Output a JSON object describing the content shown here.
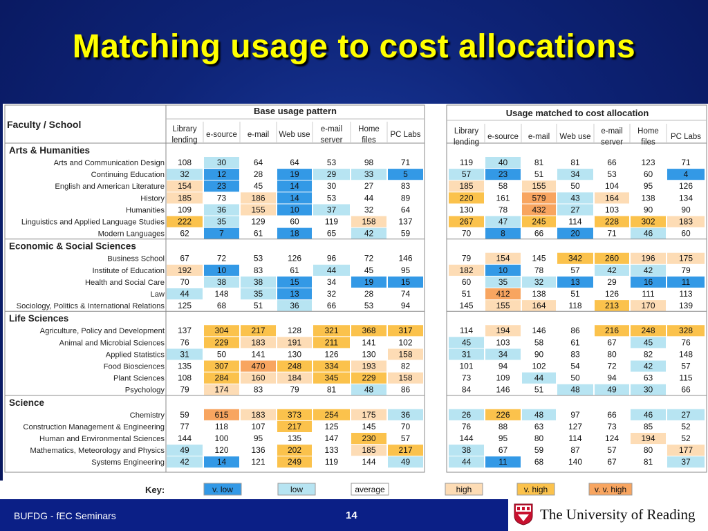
{
  "slide": {
    "title": "Matching usage to cost allocations",
    "footer_left": "BUFDG - fEC Seminars",
    "page_number": "14",
    "university": "The University of Reading"
  },
  "left_table": {
    "header": "Base usage pattern",
    "row_header": "Faculty / School",
    "columns": [
      [
        "Library",
        "lending"
      ],
      [
        "e-source"
      ],
      [
        "e-mail"
      ],
      [
        "Web use"
      ],
      [
        "e-mail",
        "server"
      ],
      [
        "Home",
        "files"
      ],
      [
        "PC Labs"
      ]
    ]
  },
  "right_table": {
    "header": "Usage matched to cost allocation",
    "columns": [
      [
        "Library",
        "lending"
      ],
      [
        "e-source"
      ],
      [
        "e-mail"
      ],
      [
        "Web use"
      ],
      [
        "e-mail",
        "server"
      ],
      [
        "Home",
        "files"
      ],
      [
        "PC Labs"
      ]
    ]
  },
  "colors": {
    "vlow": "#3399e6",
    "low": "#b7e4f2",
    "average": "#ffffff",
    "high": "#fddcb5",
    "vhigh": "#fbc24c",
    "vvhigh": "#f8a560"
  },
  "sections": [
    {
      "name": "Arts & Humanities",
      "rows": [
        {
          "label": "Arts and Communication Design",
          "base": [
            108,
            30,
            64,
            64,
            53,
            98,
            71
          ],
          "bc": [
            "a",
            "l",
            "a",
            "a",
            "a",
            "a",
            "a"
          ],
          "matched": [
            119,
            40,
            81,
            81,
            66,
            123,
            71
          ],
          "mc": [
            "a",
            "l",
            "a",
            "a",
            "a",
            "a",
            "a"
          ]
        },
        {
          "label": "Continuing Education",
          "base": [
            32,
            12,
            28,
            19,
            29,
            33,
            5
          ],
          "bc": [
            "l",
            "v",
            "a",
            "v",
            "l",
            "l",
            "v"
          ],
          "matched": [
            57,
            23,
            51,
            34,
            53,
            60,
            4
          ],
          "mc": [
            "l",
            "v",
            "a",
            "l",
            "a",
            "a",
            "v"
          ]
        },
        {
          "label": "English and American Literature",
          "base": [
            154,
            23,
            45,
            14,
            30,
            27,
            83
          ],
          "bc": [
            "h",
            "v",
            "a",
            "v",
            "a",
            "a",
            "a"
          ],
          "matched": [
            185,
            58,
            155,
            50,
            104,
            95,
            126
          ],
          "mc": [
            "h",
            "a",
            "h",
            "a",
            "a",
            "a",
            "a"
          ]
        },
        {
          "label": "History",
          "base": [
            185,
            73,
            186,
            14,
            53,
            44,
            89
          ],
          "bc": [
            "h",
            "a",
            "h",
            "v",
            "a",
            "a",
            "a"
          ],
          "matched": [
            220,
            161,
            579,
            43,
            164,
            138,
            134
          ],
          "mc": [
            "x",
            "a",
            "w",
            "l",
            "h",
            "a",
            "a"
          ]
        },
        {
          "label": "Humanities",
          "base": [
            109,
            36,
            155,
            10,
            37,
            32,
            64
          ],
          "bc": [
            "a",
            "l",
            "h",
            "v",
            "l",
            "a",
            "a"
          ],
          "matched": [
            130,
            78,
            432,
            27,
            103,
            90,
            90
          ],
          "mc": [
            "a",
            "a",
            "w",
            "l",
            "a",
            "a",
            "a"
          ]
        },
        {
          "label": "Linguistics and Applied Language Studies",
          "base": [
            222,
            35,
            129,
            60,
            119,
            158,
            137
          ],
          "bc": [
            "x",
            "l",
            "a",
            "a",
            "a",
            "h",
            "a"
          ],
          "matched": [
            267,
            47,
            245,
            114,
            228,
            302,
            183
          ],
          "mc": [
            "x",
            "l",
            "x",
            "a",
            "x",
            "x",
            "h"
          ]
        },
        {
          "label": "Modern Languages",
          "base": [
            62,
            7,
            61,
            18,
            65,
            42,
            59
          ],
          "bc": [
            "a",
            "v",
            "a",
            "v",
            "a",
            "l",
            "a"
          ],
          "matched": [
            70,
            8,
            66,
            20,
            71,
            46,
            60
          ],
          "mc": [
            "a",
            "v",
            "a",
            "v",
            "a",
            "l",
            "a"
          ]
        }
      ]
    },
    {
      "name": "Economic & Social Sciences",
      "rows": [
        {
          "label": "Business School",
          "base": [
            67,
            72,
            53,
            126,
            96,
            72,
            146
          ],
          "bc": [
            "a",
            "a",
            "a",
            "a",
            "a",
            "a",
            "a"
          ],
          "matched": [
            79,
            154,
            145,
            342,
            260,
            196,
            175
          ],
          "mc": [
            "a",
            "h",
            "a",
            "x",
            "x",
            "h",
            "h"
          ]
        },
        {
          "label": "Institute of Education",
          "base": [
            192,
            10,
            83,
            61,
            44,
            45,
            95
          ],
          "bc": [
            "h",
            "v",
            "a",
            "a",
            "l",
            "a",
            "a"
          ],
          "matched": [
            182,
            10,
            78,
            57,
            42,
            42,
            79
          ],
          "mc": [
            "h",
            "v",
            "a",
            "a",
            "l",
            "l",
            "a"
          ]
        },
        {
          "label": "Health and Social Care",
          "base": [
            70,
            38,
            38,
            15,
            34,
            19,
            15
          ],
          "bc": [
            "a",
            "l",
            "l",
            "v",
            "a",
            "v",
            "v"
          ],
          "matched": [
            60,
            35,
            32,
            13,
            29,
            16,
            11
          ],
          "mc": [
            "a",
            "l",
            "l",
            "v",
            "a",
            "v",
            "v"
          ]
        },
        {
          "label": "Law",
          "base": [
            44,
            148,
            35,
            13,
            32,
            28,
            74
          ],
          "bc": [
            "l",
            "a",
            "l",
            "v",
            "a",
            "a",
            "a"
          ],
          "matched": [
            51,
            412,
            138,
            51,
            126,
            111,
            113
          ],
          "mc": [
            "a",
            "w",
            "a",
            "a",
            "a",
            "a",
            "a"
          ]
        },
        {
          "label": "Sociology, Politics & International Relations",
          "base": [
            125,
            68,
            51,
            36,
            66,
            53,
            94
          ],
          "bc": [
            "a",
            "a",
            "a",
            "l",
            "a",
            "a",
            "a"
          ],
          "matched": [
            145,
            155,
            164,
            118,
            213,
            170,
            139
          ],
          "mc": [
            "a",
            "h",
            "h",
            "a",
            "x",
            "h",
            "a"
          ]
        }
      ]
    },
    {
      "name": "Life Sciences",
      "rows": [
        {
          "label": "Agriculture, Policy and Development",
          "base": [
            137,
            304,
            217,
            128,
            321,
            368,
            317
          ],
          "bc": [
            "a",
            "x",
            "x",
            "a",
            "x",
            "x",
            "x"
          ],
          "matched": [
            114,
            194,
            146,
            86,
            216,
            248,
            328
          ],
          "mc": [
            "a",
            "h",
            "a",
            "a",
            "x",
            "x",
            "x"
          ]
        },
        {
          "label": "Animal and Microbial Sciences",
          "base": [
            76,
            229,
            183,
            191,
            211,
            141,
            102
          ],
          "bc": [
            "a",
            "x",
            "h",
            "h",
            "x",
            "a",
            "a"
          ],
          "matched": [
            45,
            103,
            58,
            61,
            67,
            45,
            76
          ],
          "mc": [
            "l",
            "a",
            "a",
            "a",
            "a",
            "l",
            "a"
          ]
        },
        {
          "label": "Applied Statistics",
          "base": [
            31,
            50,
            141,
            130,
            126,
            130,
            158
          ],
          "bc": [
            "l",
            "a",
            "a",
            "a",
            "a",
            "a",
            "h"
          ],
          "matched": [
            31,
            34,
            90,
            83,
            80,
            82,
            148
          ],
          "mc": [
            "l",
            "l",
            "a",
            "a",
            "a",
            "a",
            "a"
          ]
        },
        {
          "label": "Food Biosciences",
          "base": [
            135,
            307,
            470,
            248,
            334,
            193,
            82
          ],
          "bc": [
            "a",
            "x",
            "w",
            "x",
            "x",
            "h",
            "a"
          ],
          "matched": [
            101,
            94,
            102,
            54,
            72,
            42,
            57
          ],
          "mc": [
            "a",
            "a",
            "a",
            "a",
            "a",
            "l",
            "a"
          ]
        },
        {
          "label": "Plant Sciences",
          "base": [
            108,
            284,
            160,
            184,
            345,
            229,
            158
          ],
          "bc": [
            "a",
            "x",
            "h",
            "h",
            "x",
            "x",
            "h"
          ],
          "matched": [
            73,
            109,
            44,
            50,
            94,
            63,
            115
          ],
          "mc": [
            "a",
            "a",
            "l",
            "a",
            "a",
            "a",
            "a"
          ]
        },
        {
          "label": "Psychology",
          "base": [
            79,
            174,
            83,
            79,
            81,
            48,
            86
          ],
          "bc": [
            "a",
            "h",
            "a",
            "a",
            "a",
            "l",
            "a"
          ],
          "matched": [
            84,
            146,
            51,
            48,
            49,
            30,
            66
          ],
          "mc": [
            "a",
            "a",
            "a",
            "l",
            "l",
            "l",
            "a"
          ]
        }
      ]
    },
    {
      "name": "Science",
      "rows": [
        {
          "label": "Chemistry",
          "base": [
            59,
            615,
            183,
            373,
            254,
            175,
            36
          ],
          "bc": [
            "a",
            "w",
            "h",
            "x",
            "x",
            "h",
            "l"
          ],
          "matched": [
            26,
            226,
            48,
            97,
            66,
            46,
            27
          ],
          "mc": [
            "l",
            "x",
            "l",
            "a",
            "a",
            "l",
            "l"
          ]
        },
        {
          "label": "Construction Management & Engineering",
          "base": [
            77,
            118,
            107,
            217,
            125,
            145,
            70
          ],
          "bc": [
            "a",
            "a",
            "a",
            "x",
            "a",
            "a",
            "a"
          ],
          "matched": [
            76,
            88,
            63,
            127,
            73,
            85,
            52
          ],
          "mc": [
            "a",
            "a",
            "a",
            "a",
            "a",
            "a",
            "a"
          ]
        },
        {
          "label": "Human and Environmental Sciences",
          "base": [
            144,
            100,
            95,
            135,
            147,
            230,
            57
          ],
          "bc": [
            "a",
            "a",
            "a",
            "a",
            "a",
            "x",
            "a"
          ],
          "matched": [
            144,
            95,
            80,
            114,
            124,
            194,
            52
          ],
          "mc": [
            "a",
            "a",
            "a",
            "a",
            "a",
            "h",
            "a"
          ]
        },
        {
          "label": "Mathematics, Meteorology and Physics",
          "base": [
            49,
            120,
            136,
            202,
            133,
            185,
            217
          ],
          "bc": [
            "l",
            "a",
            "a",
            "x",
            "a",
            "h",
            "x"
          ],
          "matched": [
            38,
            67,
            59,
            87,
            57,
            80,
            177
          ],
          "mc": [
            "l",
            "a",
            "a",
            "a",
            "a",
            "a",
            "h"
          ]
        },
        {
          "label": "Systems Engineering",
          "base": [
            42,
            14,
            121,
            249,
            119,
            144,
            49
          ],
          "bc": [
            "l",
            "v",
            "a",
            "x",
            "a",
            "a",
            "l"
          ],
          "matched": [
            44,
            11,
            68,
            140,
            67,
            81,
            37
          ],
          "mc": [
            "l",
            "v",
            "a",
            "a",
            "a",
            "a",
            "l"
          ]
        }
      ]
    }
  ],
  "key": {
    "label": "Key:",
    "items": [
      {
        "label": "v. low",
        "code": "v"
      },
      {
        "label": "low",
        "code": "l"
      },
      {
        "label": "average",
        "code": "a"
      },
      {
        "label": "high",
        "code": "h"
      },
      {
        "label": "v. high",
        "code": "x"
      },
      {
        "label": "v. v. high",
        "code": "w"
      }
    ]
  }
}
